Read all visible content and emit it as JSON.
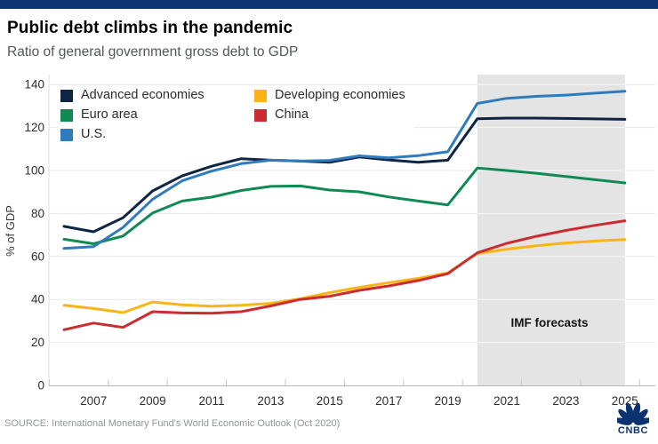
{
  "page": {
    "title": "Public debt climbs in the pandemic",
    "subtitle": "Ratio of general government gross debt to GDP",
    "source": "SOURCE: International Monetary Fund's World Economic Outlook (Oct 2020)",
    "logo_text": "CNBC"
  },
  "colors": {
    "top_bar": "#0d3471",
    "brand_navy": "#0b3370",
    "gridline": "#e8e8e8",
    "gridline_on_band": "#f8f8f8",
    "band": "#e4e4e4",
    "axis_line": "#b5b5b5",
    "tick": "#c9c9c9",
    "axis_label": "#2e2e2e"
  },
  "chart_data": {
    "type": "line",
    "title": "Public debt climbs in the pandemic",
    "subtitle": "Ratio of general government gross debt to GDP",
    "ylabel": "% of GDP",
    "xlabel": "",
    "grid": true,
    "legend_position": "top-left-inside",
    "ylim": [
      0,
      145
    ],
    "y_ticks": [
      0,
      20,
      40,
      60,
      80,
      100,
      120,
      140
    ],
    "x": [
      2006,
      2007,
      2008,
      2009,
      2010,
      2011,
      2012,
      2013,
      2014,
      2015,
      2016,
      2017,
      2018,
      2019,
      2020,
      2021,
      2022,
      2023,
      2024,
      2025
    ],
    "x_tick_labels": [
      2007,
      2009,
      2011,
      2013,
      2015,
      2017,
      2019,
      2021,
      2023,
      2025
    ],
    "forecast_band": {
      "label": "IMF forecasts",
      "from_year": 2020,
      "to_year": 2025
    },
    "series": [
      {
        "name": "Advanced economies",
        "color": "#0f2342",
        "values": [
          74.0,
          71.5,
          78.0,
          90.5,
          97.5,
          102.0,
          105.5,
          104.8,
          104.4,
          103.8,
          106.3,
          104.9,
          103.8,
          104.8,
          124.1,
          124.4,
          124.4,
          124.2,
          124.0,
          123.8
        ]
      },
      {
        "name": "Euro area",
        "color": "#0f8a52",
        "values": [
          68.0,
          65.9,
          69.5,
          80.2,
          85.8,
          87.6,
          90.7,
          92.6,
          92.8,
          90.9,
          90.1,
          87.7,
          85.8,
          84.0,
          101.1,
          100.0,
          98.7,
          97.2,
          95.7,
          94.2
        ]
      },
      {
        "name": "U.S.",
        "color": "#2e7cbd",
        "values": [
          63.7,
          64.6,
          73.5,
          86.6,
          95.2,
          99.7,
          103.2,
          104.8,
          104.4,
          104.7,
          106.8,
          105.9,
          106.9,
          108.7,
          131.2,
          133.6,
          134.5,
          135.1,
          136.0,
          136.9
        ]
      },
      {
        "name": "Developing economies",
        "color": "#fcb316",
        "values": [
          37.3,
          35.8,
          33.9,
          38.8,
          37.5,
          36.8,
          37.3,
          38.2,
          40.3,
          43.2,
          45.6,
          47.8,
          49.8,
          52.4,
          61.4,
          63.4,
          65.0,
          66.3,
          67.2,
          67.9
        ]
      },
      {
        "name": "China",
        "color": "#cb2c2f",
        "values": [
          25.9,
          29.0,
          27.0,
          34.3,
          33.7,
          33.6,
          34.3,
          37.0,
          40.0,
          41.5,
          44.2,
          46.3,
          48.8,
          52.0,
          61.7,
          66.1,
          69.4,
          72.1,
          74.5,
          76.6
        ]
      }
    ],
    "legend": {
      "columns": [
        [
          "Advanced economies",
          "Euro area",
          "U.S."
        ],
        [
          "Developing economies",
          "China"
        ]
      ]
    }
  }
}
